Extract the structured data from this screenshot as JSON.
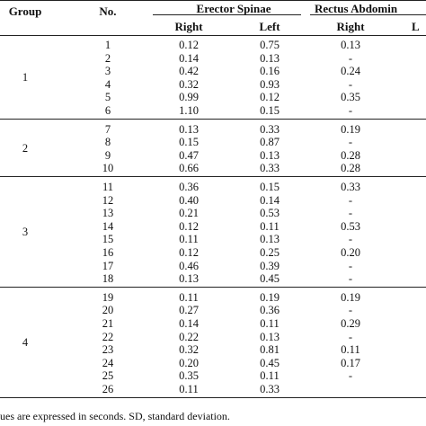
{
  "header": {
    "group": "Group",
    "no": "No.",
    "erector_spinae": "Erector Spinae",
    "rectus_abdominis": "Rectus Abdomin",
    "right": "Right",
    "left": "Left",
    "right2": "Right",
    "left2": "L"
  },
  "groups": [
    {
      "label": "1",
      "rows": [
        [
          "1",
          "0.12",
          "0.75",
          "0.13",
          ""
        ],
        [
          "2",
          "0.14",
          "0.13",
          "-",
          ""
        ],
        [
          "3",
          "0.42",
          "0.16",
          "0.24",
          ""
        ],
        [
          "4",
          "0.32",
          "0.93",
          "-",
          ""
        ],
        [
          "5",
          "0.99",
          "0.12",
          "0.35",
          ""
        ],
        [
          "6",
          "1.10",
          "0.15",
          "-",
          ""
        ]
      ]
    },
    {
      "label": "2",
      "rows": [
        [
          "7",
          "0.13",
          "0.33",
          "0.19",
          ""
        ],
        [
          "8",
          "0.15",
          "0.87",
          "-",
          ""
        ],
        [
          "9",
          "0.47",
          "0.13",
          "0.28",
          ""
        ],
        [
          "10",
          "0.66",
          "0.33",
          "0.28",
          ""
        ]
      ]
    },
    {
      "label": "3",
      "rows": [
        [
          "11",
          "0.36",
          "0.15",
          "0.33",
          ""
        ],
        [
          "12",
          "0.40",
          "0.14",
          "-",
          ""
        ],
        [
          "13",
          "0.21",
          "0.53",
          "-",
          ""
        ],
        [
          "14",
          "0.12",
          "0.11",
          "0.53",
          ""
        ],
        [
          "15",
          "0.11",
          "0.13",
          "-",
          ""
        ],
        [
          "16",
          "0.12",
          "0.25",
          "0.20",
          ""
        ],
        [
          "17",
          "0.46",
          "0.39",
          "-",
          ""
        ],
        [
          "18",
          "0.13",
          "0.45",
          "-",
          ""
        ]
      ]
    },
    {
      "label": "4",
      "rows": [
        [
          "19",
          "0.11",
          "0.19",
          "0.19",
          ""
        ],
        [
          "20",
          "0.27",
          "0.36",
          "-",
          ""
        ],
        [
          "21",
          "0.14",
          "0.11",
          "0.29",
          ""
        ],
        [
          "22",
          "0.22",
          "0.13",
          "-",
          ""
        ],
        [
          "23",
          "0.32",
          "0.81",
          "0.11",
          ""
        ],
        [
          "24",
          "0.20",
          "0.45",
          "0.17",
          ""
        ],
        [
          "25",
          "0.35",
          "0.11",
          "-",
          ""
        ],
        [
          "26",
          "0.11",
          "0.33",
          "",
          ""
        ]
      ]
    }
  ],
  "footer": "ues are expressed in seconds. SD, standard deviation."
}
